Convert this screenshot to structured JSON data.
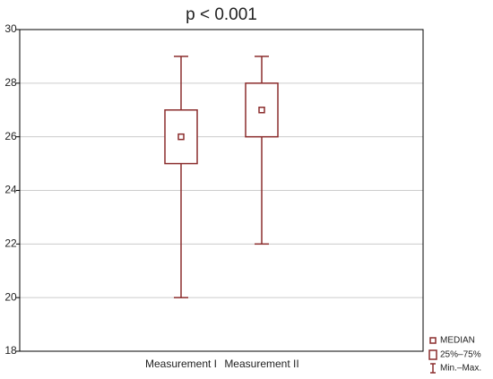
{
  "chart_data": {
    "type": "box",
    "title": "p < 0.001",
    "categories": [
      "Measurement I",
      "Measurement II"
    ],
    "series": [
      {
        "name": "Measurement I",
        "min": 20,
        "q1": 25,
        "median": 26,
        "q3": 27,
        "max": 29
      },
      {
        "name": "Measurement II",
        "min": 22,
        "q1": 26,
        "median": 27,
        "q3": 28,
        "max": 29
      }
    ],
    "color": "#8b2d2d",
    "ylim": [
      18,
      30
    ],
    "yticks": [
      18,
      20,
      22,
      24,
      26,
      28,
      30
    ],
    "grid": true,
    "legend": [
      "MEDIAN",
      "25%–75%",
      "Min.–Max."
    ],
    "legend_position": "bottom-right"
  }
}
